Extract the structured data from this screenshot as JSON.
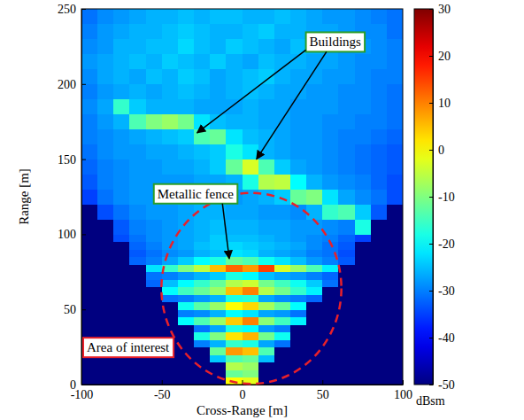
{
  "chart_data": {
    "type": "heatmap",
    "xlabel": "Cross-Range [m]",
    "ylabel": "Range [m]",
    "xlim": [
      -100,
      100
    ],
    "ylim": [
      0,
      250
    ],
    "xticks": [
      -100,
      -50,
      0,
      50,
      100
    ],
    "yticks": [
      0,
      50,
      100,
      150,
      200,
      250
    ],
    "x_bins": [
      -100,
      -90,
      -80,
      -70,
      -60,
      -50,
      -40,
      -30,
      -20,
      -10,
      0,
      10,
      20,
      30,
      40,
      50,
      60,
      70,
      80,
      90,
      100
    ],
    "y_bins": [
      0,
      5,
      10,
      15,
      20,
      25,
      30,
      35,
      40,
      45,
      50,
      55,
      60,
      65,
      70,
      75,
      80,
      85,
      90,
      95,
      100,
      110,
      120,
      130,
      140,
      150,
      160,
      170,
      180,
      190,
      200,
      210,
      220,
      230,
      240,
      250
    ],
    "cells": [
      [
        -50,
        -50,
        -50,
        -50,
        -50,
        -50,
        -50,
        -50,
        -50,
        0,
        -2,
        -50,
        -50,
        -50,
        -50,
        -50,
        -50,
        -50,
        -50,
        -50
      ],
      [
        -50,
        -50,
        -50,
        -50,
        -50,
        -50,
        -50,
        -50,
        -50,
        -12,
        -10,
        -50,
        -50,
        -50,
        -50,
        -50,
        -50,
        -50,
        -50,
        -50
      ],
      [
        -50,
        -50,
        -50,
        -50,
        -50,
        -50,
        -50,
        -50,
        -50,
        -6,
        -8,
        -50,
        -50,
        -50,
        -50,
        -50,
        -50,
        -50,
        -50,
        -50
      ],
      [
        -50,
        -50,
        -50,
        -50,
        -50,
        -50,
        -50,
        -50,
        -24,
        -14,
        -12,
        -25,
        -50,
        -50,
        -50,
        -50,
        -50,
        -50,
        -50,
        -50
      ],
      [
        -50,
        -50,
        -50,
        -50,
        -50,
        -50,
        -50,
        -50,
        -12,
        8,
        5,
        -14,
        -50,
        -50,
        -50,
        -50,
        -50,
        -50,
        -50,
        -50
      ],
      [
        -50,
        -50,
        -50,
        -50,
        -50,
        -50,
        -50,
        -30,
        -26,
        -16,
        -18,
        -27,
        -31,
        -50,
        -50,
        -50,
        -50,
        -50,
        -50,
        -50
      ],
      [
        -50,
        -50,
        -50,
        -50,
        -50,
        -50,
        -50,
        -18,
        -10,
        2,
        6,
        -11,
        -19,
        -50,
        -50,
        -50,
        -50,
        -50,
        -50,
        -50
      ],
      [
        -50,
        -50,
        -50,
        -50,
        -50,
        -50,
        -50,
        -31,
        -27,
        -18,
        -20,
        -28,
        -30,
        -50,
        -50,
        -50,
        -50,
        -50,
        -50,
        -50
      ],
      [
        -50,
        -50,
        -50,
        -50,
        -50,
        -50,
        -20,
        -14,
        -8,
        4,
        10,
        -9,
        -15,
        -21,
        -50,
        -50,
        -50,
        -50,
        -50,
        -50
      ],
      [
        -50,
        -50,
        -50,
        -50,
        -50,
        -50,
        -30,
        -29,
        -26,
        -20,
        -22,
        -27,
        -28,
        -31,
        -50,
        -50,
        -50,
        -50,
        -50,
        -50
      ],
      [
        -50,
        -50,
        -50,
        -50,
        -50,
        -50,
        -19,
        -13,
        -8,
        0,
        3,
        -7,
        -12,
        -20,
        -50,
        -50,
        -50,
        -50,
        -50,
        -50
      ],
      [
        -50,
        -50,
        -50,
        -50,
        -50,
        -31,
        -30,
        -28,
        -26,
        -18,
        -17,
        -27,
        -29,
        -30,
        -32,
        -50,
        -50,
        -50,
        -50,
        -50
      ],
      [
        -50,
        -50,
        -50,
        -50,
        -50,
        -20,
        -15,
        -12,
        -8,
        5,
        10,
        -6,
        -11,
        -16,
        -21,
        -50,
        -50,
        -50,
        -50,
        -50
      ],
      [
        -50,
        -50,
        -50,
        -50,
        -32,
        -25,
        -20,
        -16,
        -12,
        -6,
        -4,
        -11,
        -15,
        -19,
        -24,
        -31,
        -50,
        -50,
        -50,
        -50
      ],
      [
        -50,
        -50,
        -50,
        -50,
        -31,
        -30,
        -28,
        -26,
        -24,
        -18,
        -20,
        -25,
        -27,
        -28,
        -30,
        -32,
        -50,
        -50,
        -50,
        -50
      ],
      [
        -50,
        -50,
        -50,
        -50,
        -22,
        -16,
        -10,
        -5,
        5,
        12,
        8,
        15,
        -3,
        -8,
        -14,
        -21,
        -50,
        -50,
        -50,
        -50
      ],
      [
        -50,
        -50,
        -50,
        -32,
        -30,
        -27,
        -24,
        -20,
        -18,
        -12,
        -14,
        -19,
        -22,
        -25,
        -28,
        -30,
        -33,
        -50,
        -50,
        -50
      ],
      [
        -50,
        -50,
        -50,
        -33,
        -31,
        -29,
        -28,
        -26,
        -25,
        -22,
        -23,
        -26,
        -27,
        -28,
        -30,
        -31,
        -34,
        -50,
        -50,
        -50
      ],
      [
        -50,
        -50,
        -50,
        -32,
        -30,
        -28,
        -27,
        -25,
        -24,
        -23,
        -24,
        -25,
        -26,
        -27,
        -29,
        -31,
        -33,
        -50,
        -50,
        -50
      ],
      [
        -50,
        -50,
        -34,
        -31,
        -29,
        -28,
        -27,
        -26,
        -24,
        -25,
        -25,
        -26,
        -27,
        -28,
        -29,
        -30,
        -32,
        -35,
        -50,
        -50
      ],
      [
        -50,
        -50,
        -33,
        -30,
        -29,
        -28,
        -27,
        -26,
        -25,
        -26,
        -26,
        -27,
        -27,
        -28,
        -28,
        -29,
        -30,
        -18,
        -50,
        -50
      ],
      [
        -50,
        -34,
        -31,
        -29,
        -28,
        -28,
        -27,
        -26,
        -26,
        -27,
        -27,
        -28,
        -28,
        -29,
        -26,
        -16,
        -14,
        -24,
        -33,
        -50
      ],
      [
        -35,
        -31,
        -29,
        -28,
        -28,
        -27,
        -27,
        -27,
        -28,
        -28,
        -27,
        -26,
        -24,
        -12,
        -10,
        -22,
        -27,
        -29,
        -31,
        -34
      ],
      [
        -33,
        -30,
        -29,
        -28,
        -28,
        -28,
        -28,
        -27,
        -27,
        -26,
        -18,
        -6,
        -5,
        -20,
        -26,
        -28,
        -29,
        -30,
        -32,
        -34
      ],
      [
        -32,
        -30,
        -29,
        -28,
        -28,
        -27,
        -27,
        -26,
        -24,
        -12,
        -3,
        -14,
        -24,
        -27,
        -28,
        -29,
        -30,
        -31,
        -32,
        -33
      ],
      [
        -31,
        -29,
        -28,
        -28,
        -27,
        -27,
        -26,
        -25,
        -24,
        -18,
        -22,
        -26,
        -27,
        -28,
        -28,
        -29,
        -30,
        -31,
        -32,
        -33
      ],
      [
        -30,
        -29,
        -28,
        -27,
        -26,
        -25,
        -24,
        -14,
        -12,
        -22,
        -25,
        -26,
        -27,
        -28,
        -28,
        -29,
        -30,
        -30,
        -31,
        -32
      ],
      [
        -30,
        -28,
        -26,
        -14,
        -10,
        -8,
        -11,
        -22,
        -25,
        -26,
        -26,
        -27,
        -27,
        -28,
        -28,
        -29,
        -29,
        -30,
        -30,
        -31
      ],
      [
        -29,
        -27,
        -16,
        -24,
        -26,
        -26,
        -26,
        -27,
        -27,
        -27,
        -26,
        -27,
        -27,
        -28,
        -28,
        -28,
        -29,
        -29,
        -30,
        -31
      ],
      [
        -30,
        -28,
        -27,
        -26,
        -27,
        -26,
        -25,
        -26,
        -27,
        -26,
        -25,
        -26,
        -27,
        -27,
        -28,
        -28,
        -29,
        -29,
        -30,
        -31
      ],
      [
        -29,
        -27,
        -26,
        -27,
        -25,
        -26,
        -24,
        -25,
        -27,
        -26,
        -25,
        -24,
        -26,
        -27,
        -27,
        -28,
        -28,
        -29,
        -30,
        -30
      ],
      [
        -28,
        -27,
        -26,
        -25,
        -26,
        -24,
        -25,
        -26,
        -24,
        -26,
        -27,
        -25,
        -26,
        -26,
        -27,
        -27,
        -28,
        -29,
        -29,
        -30
      ],
      [
        -29,
        -28,
        -26,
        -26,
        -25,
        -25,
        -23,
        -25,
        -26,
        -24,
        -25,
        -26,
        -27,
        -25,
        -26,
        -27,
        -28,
        -28,
        -29,
        -30
      ],
      [
        -30,
        -28,
        -27,
        -26,
        -26,
        -25,
        -24,
        -25,
        -26,
        -26,
        -25,
        -24,
        -26,
        -26,
        -27,
        -27,
        -28,
        -29,
        -29,
        -31
      ],
      [
        -31,
        -29,
        -28,
        -27,
        -26,
        -26,
        -25,
        -26,
        -25,
        -25,
        -26,
        -26,
        -25,
        -26,
        -27,
        -28,
        -28,
        -29,
        -30,
        -31
      ]
    ],
    "colorbar": {
      "range": [
        -50,
        30
      ],
      "ticks": [
        -50,
        -40,
        -30,
        -20,
        -10,
        0,
        10,
        20,
        30
      ],
      "label": "dBsm"
    },
    "annotations": [
      {
        "text": "Buildings"
      },
      {
        "text": "Metallic fence"
      },
      {
        "text": "Area of interest"
      }
    ]
  }
}
